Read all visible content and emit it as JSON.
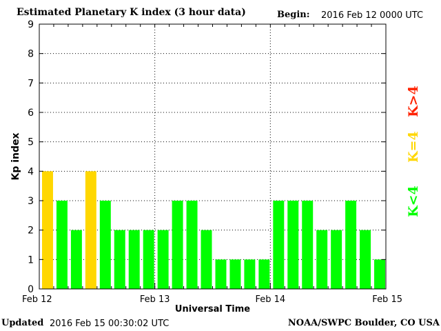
{
  "header": {
    "title": "Estimated Planetary K index (3 hour data)",
    "begin_label": "Begin:",
    "begin_value": "2016 Feb 12 0000 UTC"
  },
  "footer": {
    "updated_label": "Updated",
    "updated_value": "2016 Feb 15 00:30:02 UTC",
    "credit": "NOAA/SWPC Boulder, CO USA"
  },
  "legend": {
    "k_lt4": "K<4",
    "k_eq4": "K=4",
    "k_gt4": "K>4"
  },
  "colors": {
    "k_lt4": "#00ff00",
    "k_eq4": "#ffd700",
    "k_gt4": "#ff2200"
  },
  "chart_data": {
    "type": "bar",
    "title": "Estimated Planetary K index (3 hour data)",
    "xlabel": "Universal Time",
    "ylabel": "Kp index",
    "ylim": [
      0,
      9
    ],
    "yticks": [
      0,
      1,
      2,
      3,
      4,
      5,
      6,
      7,
      8,
      9
    ],
    "xticks": [
      "Feb 12",
      "Feb 13",
      "Feb 14",
      "Feb 15"
    ],
    "grid": true,
    "series": [
      {
        "values": [
          4,
          3,
          2,
          4,
          3,
          2,
          2,
          2,
          2,
          3,
          3,
          2,
          1,
          1,
          1,
          1,
          3,
          3,
          3,
          2,
          2,
          3,
          2,
          1
        ]
      }
    ]
  }
}
